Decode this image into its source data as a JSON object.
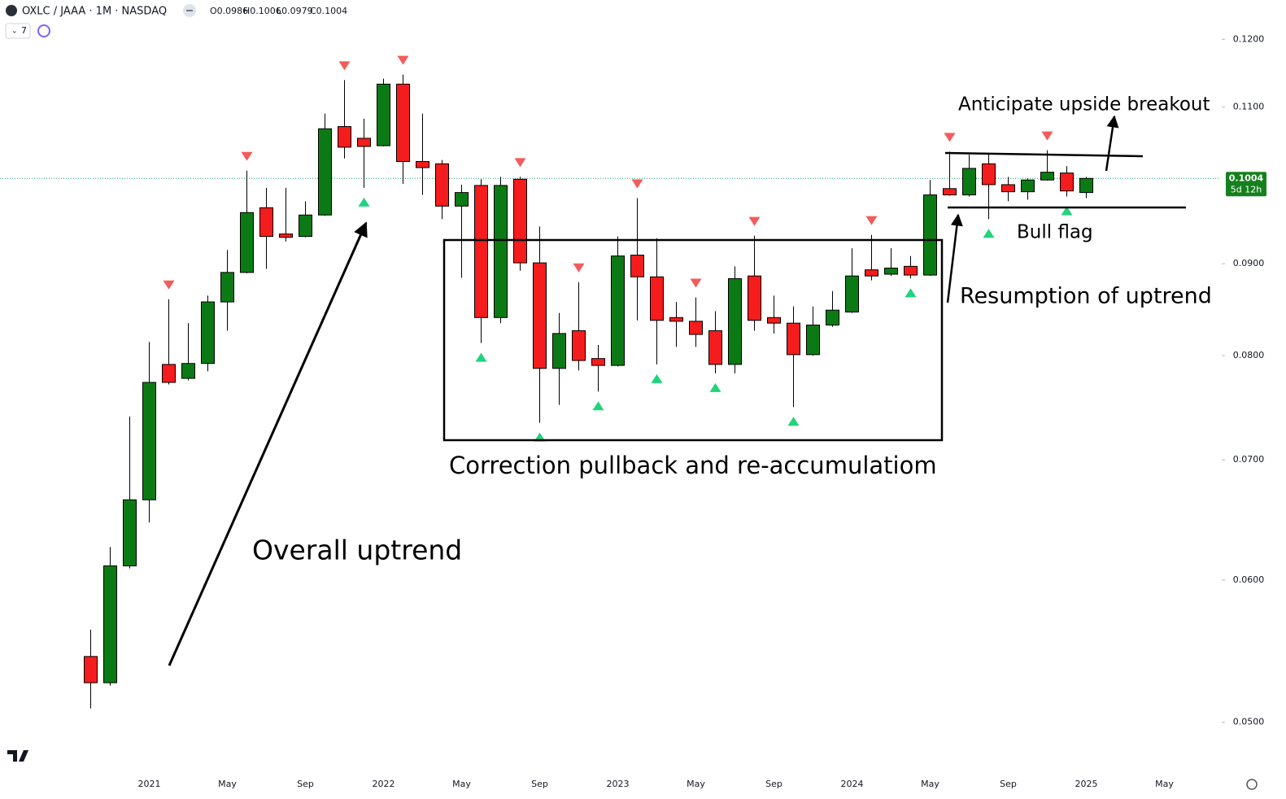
{
  "header": {
    "symbol": "OXLC / JAAA · 1M · NASDAQ",
    "ohlc": [
      "O0.0986",
      "H0.1006",
      "L0.0979",
      "C0.1004"
    ],
    "indicator_count": 7
  },
  "chart_data": {
    "type": "candlestick",
    "categories": [
      null,
      null,
      null,
      "2021",
      null,
      null,
      null,
      "May",
      null,
      null,
      null,
      "Sep",
      null,
      null,
      null,
      "2022",
      null,
      null,
      null,
      "May",
      null,
      null,
      null,
      "Sep",
      null,
      null,
      null,
      "2023",
      null,
      null,
      null,
      "May",
      null,
      null,
      null,
      "Sep",
      null,
      null,
      null,
      "2024",
      null,
      null,
      null,
      "May",
      null,
      null,
      null,
      "Sep",
      null,
      null,
      null,
      "2025",
      null,
      null,
      null,
      "May"
    ],
    "open": [
      0.0544,
      0.0526,
      0.0611,
      0.0665,
      0.0791,
      0.0777,
      0.0792,
      0.0857,
      0.089,
      0.0967,
      0.0935,
      0.0932,
      0.0958,
      0.1073,
      0.1057,
      0.1047,
      0.1133,
      0.1026,
      0.1023,
      0.0969,
      0.0995,
      0.084,
      0.1003,
      0.0901,
      0.0787,
      0.0826,
      0.0797,
      0.079,
      0.091,
      0.0885,
      0.084,
      0.0836,
      0.0826,
      0.0791,
      0.0886,
      0.084,
      0.0834,
      0.0801,
      0.0832,
      0.0846,
      0.0893,
      0.0888,
      0.0897,
      0.0887,
      0.0991,
      0.0983,
      0.1023,
      0.0996,
      0.0987,
      0.1002,
      0.1011,
      0.0986,
      null,
      null,
      null,
      null
    ],
    "high": [
      0.0563,
      0.0626,
      0.074,
      0.0814,
      0.086,
      0.0834,
      0.0864,
      0.0916,
      0.1014,
      0.0992,
      0.0992,
      0.0975,
      0.1091,
      0.1139,
      0.1084,
      0.1141,
      0.1147,
      0.1091,
      0.1028,
      0.0996,
      0.1003,
      0.1006,
      0.1006,
      0.0944,
      0.0845,
      0.0879,
      0.0811,
      0.0932,
      0.0979,
      0.093,
      0.0857,
      0.0862,
      0.0847,
      0.0897,
      0.0933,
      0.0864,
      0.0852,
      0.0852,
      0.0869,
      0.0918,
      0.0934,
      0.0918,
      0.0909,
      0.1002,
      0.1039,
      0.1035,
      0.1036,
      0.1006,
      0.1004,
      0.1041,
      0.102,
      0.1006,
      null,
      null,
      null,
      null
    ],
    "low": [
      0.0509,
      0.0524,
      0.0609,
      0.0646,
      0.0771,
      0.0775,
      0.0784,
      0.0826,
      0.0889,
      0.0894,
      0.0926,
      0.0931,
      0.0957,
      0.103,
      0.0992,
      0.1046,
      0.0997,
      0.0983,
      0.0953,
      0.0884,
      0.0813,
      0.0834,
      0.0892,
      0.0734,
      0.0751,
      0.0785,
      0.0764,
      0.0789,
      0.0837,
      0.0791,
      0.0809,
      0.0809,
      0.0782,
      0.0782,
      0.0826,
      0.0823,
      0.0749,
      0.08,
      0.083,
      0.0845,
      0.0881,
      0.0886,
      0.0883,
      0.0886,
      0.0982,
      0.0981,
      0.0953,
      0.0975,
      0.0977,
      0.1001,
      0.0981,
      0.0979,
      null,
      null,
      null,
      null
    ],
    "close": [
      0.0526,
      0.0611,
      0.0665,
      0.0773,
      0.0773,
      0.0792,
      0.0857,
      0.089,
      0.0961,
      0.0932,
      0.0931,
      0.0958,
      0.107,
      0.1045,
      0.1046,
      0.1133,
      0.1026,
      0.1018,
      0.0969,
      0.0986,
      0.084,
      0.0995,
      0.0901,
      0.0787,
      0.0823,
      0.0795,
      0.079,
      0.0909,
      0.0885,
      0.0837,
      0.0836,
      0.0822,
      0.0791,
      0.0883,
      0.0837,
      0.0834,
      0.0801,
      0.0832,
      0.0848,
      0.0886,
      0.0886,
      0.0895,
      0.0887,
      0.0983,
      0.0983,
      0.1017,
      0.0996,
      0.0987,
      0.1002,
      0.1012,
      0.0988,
      0.1004,
      null,
      null,
      null,
      null
    ],
    "up_color": "#0c7a14",
    "down_color": "#f41c1c",
    "log_scale": true,
    "ylim": [
      0.0471,
      0.1262
    ],
    "yticks": [
      {
        "value": 0.12,
        "label": "0.1200"
      },
      {
        "value": 0.11,
        "label": "0.1100"
      },
      {
        "value": 0.09,
        "label": "0.0900"
      },
      {
        "value": 0.08,
        "label": "0.0800"
      },
      {
        "value": 0.07,
        "label": "0.0700"
      },
      {
        "value": 0.06,
        "label": "0.0600"
      },
      {
        "value": 0.05,
        "label": "0.0500"
      }
    ],
    "last_price": {
      "value": 0.1004,
      "label": "0.1004"
    },
    "countdown": "5d 12h",
    "last_price_color": "#15801e",
    "pivot_highs": [
      4,
      8,
      13,
      16,
      22,
      25,
      28,
      31,
      34,
      40,
      44,
      49
    ],
    "pivot_high_color": "#f45b5b",
    "pivot_lows": [
      14,
      20,
      23,
      26,
      29,
      32,
      36,
      42,
      46,
      50
    ],
    "pivot_low_color": "#1fd47c",
    "annotations": [
      "Overall uptrend",
      "Correction pullback and re-accumulatiom",
      "Anticipate upside breakout",
      "Bull flag",
      "Resumption of uptrend"
    ]
  }
}
